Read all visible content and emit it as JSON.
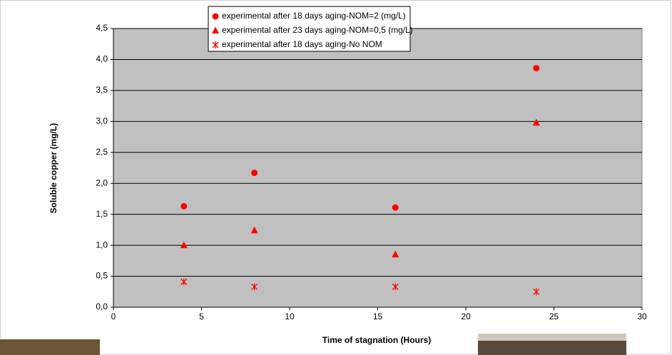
{
  "chart_data": {
    "type": "scatter",
    "x_label": "Time of stagnation (Hours)",
    "y_label": "Soluble copper (mg/L)",
    "x": [
      4,
      8,
      16,
      24
    ],
    "series": [
      {
        "name": "experimental after 18 days aging-NOM=2 (mg/L)",
        "color": "#ff0000",
        "marker": "circle",
        "values": [
          1.63,
          2.17,
          1.61,
          3.86
        ]
      },
      {
        "name": "experimental after 23 days aging-NOM=0,5 (mg/L)",
        "color": "#ff0000",
        "marker": "triangle",
        "values": [
          1.0,
          1.24,
          0.85,
          2.98
        ]
      },
      {
        "name": "experimental after 18 days aging-No NOM",
        "color": "#ff0000",
        "marker": "asterisk",
        "values": [
          0.41,
          0.33,
          0.33,
          0.25
        ]
      }
    ],
    "xlim": [
      0,
      30
    ],
    "xticks": [
      0,
      5,
      10,
      15,
      20,
      25,
      30
    ],
    "ylim": [
      0,
      4.5
    ],
    "yticks": [
      {
        "value": 0,
        "label": "0,0"
      },
      {
        "value": 0.5,
        "label": "0,5"
      },
      {
        "value": 1,
        "label": "1,0"
      },
      {
        "value": 1.5,
        "label": "1,5"
      },
      {
        "value": 2,
        "label": "2,0"
      },
      {
        "value": 2.5,
        "label": "2,5"
      },
      {
        "value": 3,
        "label": "3,0"
      },
      {
        "value": 3.5,
        "label": "3,5"
      },
      {
        "value": 4,
        "label": "4,0"
      },
      {
        "value": 4.5,
        "label": "4,5"
      }
    ],
    "grid": true,
    "plot_background": "#c0c0c0"
  }
}
